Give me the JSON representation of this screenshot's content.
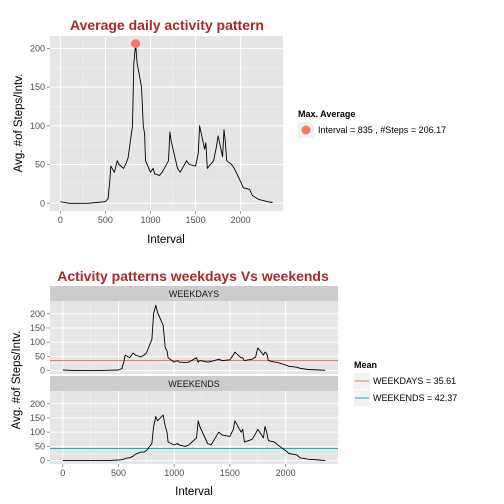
{
  "colors": {
    "title": "#a52a2a",
    "panel": "#e5e5e5",
    "strip": "#cccccc",
    "grid_major": "#ffffff",
    "grid_minor": "#f2f2f2",
    "line": "#000000",
    "max_point": "#f8766d",
    "weekdays_mean": "#f8766d",
    "weekends_mean": "#00bfc4"
  },
  "chart_data": [
    {
      "type": "line",
      "title": "Average daily activity pattern",
      "xlabel": "Interval",
      "ylabel": "Avg. #of Steps/Intv.",
      "xlim": [
        -115,
        2470
      ],
      "ylim": [
        -10,
        216
      ],
      "xticks": [
        0,
        500,
        1000,
        1500,
        2000
      ],
      "yticks": [
        0,
        50,
        100,
        150,
        200
      ],
      "grid": true,
      "legend_position": "right",
      "x": [
        0,
        100,
        200,
        300,
        400,
        500,
        530,
        550,
        560,
        600,
        630,
        650,
        700,
        730,
        750,
        800,
        815,
        835,
        850,
        900,
        920,
        935,
        945,
        1000,
        1030,
        1045,
        1100,
        1130,
        1200,
        1215,
        1230,
        1300,
        1330,
        1400,
        1430,
        1500,
        1530,
        1545,
        1600,
        1615,
        1630,
        1700,
        1730,
        1750,
        1800,
        1815,
        1830,
        1845,
        1900,
        1930,
        2000,
        2030,
        2100,
        2130,
        2200,
        2300,
        2355
      ],
      "series": [
        {
          "values": [
            2,
            0,
            0,
            0,
            1,
            2,
            6,
            30,
            48,
            40,
            55,
            50,
            45,
            52,
            58,
            100,
            180,
            206,
            182,
            150,
            100,
            90,
            55,
            40,
            45,
            38,
            36,
            40,
            55,
            92,
            80,
            45,
            40,
            55,
            50,
            48,
            65,
            100,
            70,
            78,
            45,
            55,
            72,
            87,
            60,
            95,
            80,
            55,
            50,
            45,
            28,
            20,
            18,
            10,
            5,
            2,
            1
          ]
        }
      ],
      "max_marker": {
        "x": 835,
        "y": 206.17,
        "legend_title": "Max. Average",
        "legend_label": "Interval =  835 , #Steps =  206.17"
      }
    },
    {
      "type": "line",
      "title": "Activity patterns weekdays Vs weekends",
      "xlabel": "Interval",
      "ylabel": "Avg. #of Steps/Intv.",
      "xlim": [
        -115,
        2470
      ],
      "ylim": [
        -12,
        245
      ],
      "xticks": [
        0,
        500,
        1000,
        1500,
        2000
      ],
      "yticks": [
        0,
        50,
        100,
        150,
        200
      ],
      "grid": true,
      "legend_position": "right",
      "legend_title": "Mean",
      "x": [
        0,
        100,
        200,
        300,
        400,
        500,
        530,
        550,
        560,
        600,
        630,
        650,
        700,
        730,
        750,
        800,
        815,
        835,
        850,
        900,
        920,
        935,
        945,
        1000,
        1030,
        1045,
        1100,
        1130,
        1200,
        1215,
        1230,
        1300,
        1330,
        1400,
        1430,
        1500,
        1530,
        1545,
        1600,
        1615,
        1630,
        1700,
        1730,
        1750,
        1800,
        1815,
        1830,
        1845,
        1900,
        1930,
        2000,
        2030,
        2100,
        2130,
        2200,
        2300,
        2355
      ],
      "panels": [
        {
          "name": "WEEKDAYS",
          "mean": 35.61,
          "mean_label": "WEEKDAYS  =  35.61",
          "values": [
            2,
            0,
            0,
            0,
            1,
            2,
            7,
            35,
            55,
            45,
            62,
            55,
            48,
            55,
            62,
            110,
            200,
            230,
            205,
            160,
            80,
            70,
            45,
            30,
            35,
            30,
            28,
            30,
            45,
            30,
            35,
            30,
            32,
            40,
            35,
            38,
            55,
            65,
            45,
            45,
            35,
            40,
            48,
            80,
            55,
            65,
            60,
            35,
            30,
            28,
            20,
            15,
            12,
            8,
            4,
            2,
            1
          ]
        },
        {
          "name": "WEEKENDS",
          "mean": 42.37,
          "mean_label": "WEEKENDS  =  42.37",
          "values": [
            0,
            0,
            0,
            0,
            0,
            2,
            3,
            5,
            8,
            10,
            15,
            22,
            30,
            30,
            35,
            60,
            120,
            155,
            140,
            160,
            120,
            100,
            65,
            55,
            60,
            55,
            50,
            55,
            80,
            140,
            120,
            60,
            55,
            100,
            90,
            85,
            110,
            140,
            100,
            110,
            65,
            75,
            95,
            110,
            80,
            120,
            100,
            70,
            65,
            55,
            35,
            25,
            20,
            10,
            5,
            2,
            0
          ]
        }
      ]
    }
  ]
}
